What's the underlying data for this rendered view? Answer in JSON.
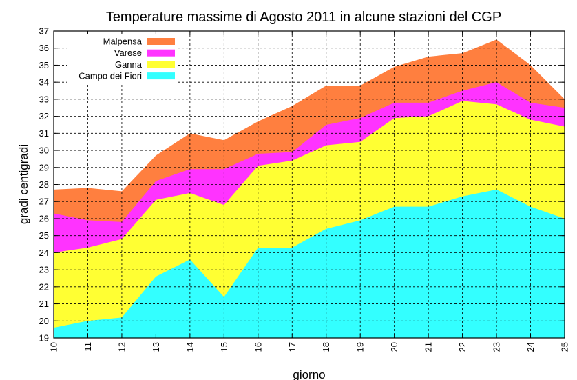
{
  "chart_data": {
    "type": "area",
    "title": "Temperature massime di Agosto 2011 in alcune stazioni del CGP",
    "xlabel": "giorno",
    "ylabel": "gradi centigradi",
    "xlim": [
      10,
      25
    ],
    "ylim": [
      19,
      37
    ],
    "x": [
      10,
      11,
      12,
      13,
      14,
      15,
      16,
      17,
      18,
      19,
      20,
      21,
      22,
      23,
      24,
      25
    ],
    "x_ticks": [
      "10",
      "11",
      "12",
      "13",
      "14",
      "15",
      "16",
      "17",
      "18",
      "19",
      "20",
      "21",
      "22",
      "23",
      "24",
      "25"
    ],
    "y_ticks": [
      "19",
      "20",
      "21",
      "22",
      "23",
      "24",
      "25",
      "26",
      "27",
      "28",
      "29",
      "30",
      "31",
      "32",
      "33",
      "34",
      "35",
      "36",
      "37"
    ],
    "grid": true,
    "legend_position": "top-left",
    "series": [
      {
        "name": "Malpensa",
        "color": "#ff7f3f",
        "values": [
          27.7,
          27.8,
          27.6,
          29.7,
          31.0,
          30.6,
          31.7,
          32.6,
          33.8,
          33.8,
          34.9,
          35.5,
          35.7,
          36.5,
          35.0,
          33.0
        ]
      },
      {
        "name": "Varese",
        "color": "#ff33ff",
        "values": [
          26.3,
          25.9,
          25.8,
          28.2,
          28.9,
          28.9,
          29.8,
          29.9,
          31.5,
          31.9,
          32.8,
          32.8,
          33.5,
          34.0,
          32.8,
          32.5
        ]
      },
      {
        "name": "Ganna",
        "color": "#ffff33",
        "values": [
          24.0,
          24.3,
          24.8,
          27.1,
          27.5,
          26.8,
          29.1,
          29.4,
          30.3,
          30.5,
          31.9,
          32.0,
          32.9,
          32.7,
          31.8,
          31.4
        ]
      },
      {
        "name": "Campo dei Fiori",
        "color": "#33ffff",
        "values": [
          19.6,
          20.0,
          20.2,
          22.6,
          23.6,
          21.4,
          24.3,
          24.3,
          25.4,
          25.9,
          26.7,
          26.7,
          27.3,
          27.7,
          26.7,
          26.0
        ]
      }
    ]
  }
}
